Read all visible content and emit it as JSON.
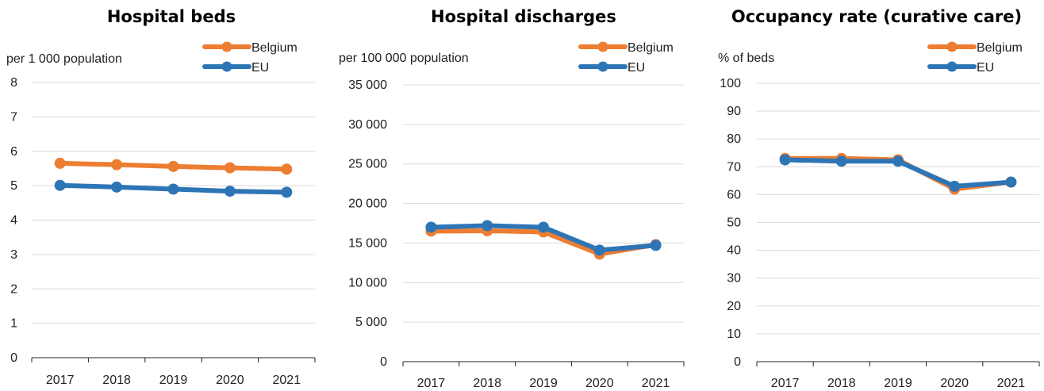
{
  "chart_data": [
    {
      "type": "line",
      "title": "Hospital beds",
      "ylabel": "per 1 000 population",
      "categories": [
        "2017",
        "2018",
        "2019",
        "2020",
        "2021"
      ],
      "ylim": [
        0,
        8
      ],
      "yticks": [
        0,
        1,
        2,
        3,
        4,
        5,
        6,
        7,
        8
      ],
      "ytick_labels": [
        "0",
        "1",
        "2",
        "3",
        "4",
        "5",
        "6",
        "7",
        "8"
      ],
      "legend_position": "top-right",
      "grid": true,
      "series": [
        {
          "name": "Belgium",
          "color": "#ED7D31",
          "values": [
            5.65,
            5.61,
            5.56,
            5.52,
            5.48
          ]
        },
        {
          "name": "EU",
          "color": "#2E75B6",
          "values": [
            5.01,
            4.96,
            4.9,
            4.84,
            4.81
          ]
        }
      ]
    },
    {
      "type": "line",
      "title": "Hospital discharges",
      "ylabel": "per 100 000 population",
      "categories": [
        "2017",
        "2018",
        "2019",
        "2020",
        "2021"
      ],
      "ylim": [
        0,
        35000
      ],
      "yticks": [
        0,
        5000,
        10000,
        15000,
        20000,
        25000,
        30000,
        35000
      ],
      "ytick_labels": [
        "0",
        "5 000",
        "10 000",
        "15 000",
        "20 000",
        "25 000",
        "30 000",
        "35 000"
      ],
      "legend_position": "top-right",
      "grid": true,
      "series": [
        {
          "name": "Belgium",
          "color": "#ED7D31",
          "values": [
            16500,
            16550,
            16400,
            13600,
            14800
          ]
        },
        {
          "name": "EU",
          "color": "#2E75B6",
          "values": [
            17000,
            17200,
            17000,
            14100,
            14700
          ]
        }
      ]
    },
    {
      "type": "line",
      "title": "Occupancy rate (curative care)",
      "ylabel": "% of beds",
      "categories": [
        "2017",
        "2018",
        "2019",
        "2020",
        "2021"
      ],
      "ylim": [
        0,
        100
      ],
      "yticks": [
        0,
        10,
        20,
        30,
        40,
        50,
        60,
        70,
        80,
        90,
        100
      ],
      "ytick_labels": [
        "0",
        "10",
        "20",
        "30",
        "40",
        "50",
        "60",
        "70",
        "80",
        "90",
        "100"
      ],
      "legend_position": "top-right",
      "grid": true,
      "series": [
        {
          "name": "Belgium",
          "color": "#ED7D31",
          "values": [
            73.0,
            73.0,
            72.5,
            62.0,
            64.5
          ]
        },
        {
          "name": "EU",
          "color": "#2E75B6",
          "values": [
            72.5,
            72.0,
            72.0,
            63.0,
            64.5
          ]
        }
      ]
    }
  ]
}
